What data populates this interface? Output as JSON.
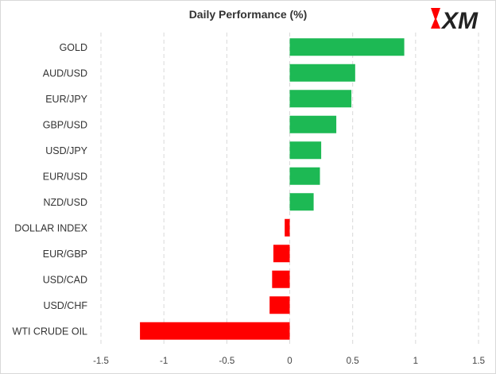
{
  "chart_data": {
    "type": "bar",
    "orientation": "horizontal",
    "title": "Daily Performance (%)",
    "categories": [
      "GOLD",
      "AUD/USD",
      "EUR/JPY",
      "GBP/USD",
      "USD/JPY",
      "EUR/USD",
      "NZD/USD",
      "DOLLAR INDEX",
      "EUR/GBP",
      "USD/CAD",
      "USD/CHF",
      "WTI CRUDE OIL"
    ],
    "values": [
      0.91,
      0.52,
      0.49,
      0.37,
      0.25,
      0.24,
      0.19,
      -0.04,
      -0.13,
      -0.14,
      -0.16,
      -1.19
    ],
    "xlim": [
      -1.5,
      1.5
    ],
    "xticks": [
      "-1.5",
      "-1",
      "-0.5",
      "0",
      "0.5",
      "1",
      "1.5"
    ],
    "grid": "vertical dashed",
    "colors": {
      "positive": "#1db954",
      "negative": "#ff0000"
    }
  },
  "logo": {
    "text": "XM",
    "brand_color": "#ff0000"
  }
}
